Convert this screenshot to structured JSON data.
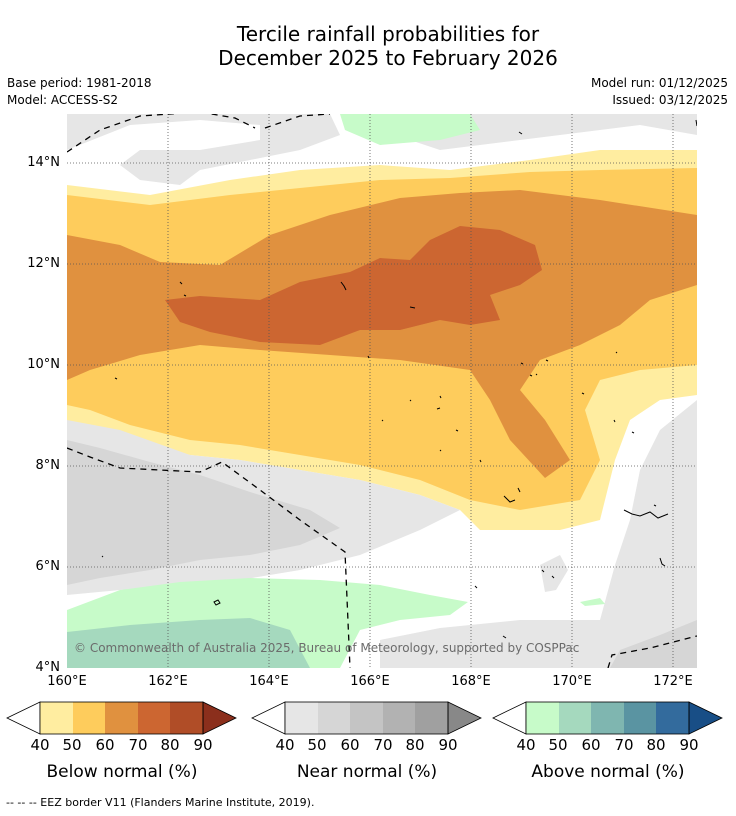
{
  "title": {
    "line1": "Tercile rainfall probabilities for",
    "line2": "December 2025 to February 2026"
  },
  "meta": {
    "base_period": "Base period: 1981-2018",
    "model": "Model: ACCESS-S2",
    "model_run": "Model run: 01/12/2025",
    "issued": "Issued: 03/12/2025"
  },
  "map": {
    "lat_labels": [
      "14°N",
      "12°N",
      "10°N",
      "8°N",
      "6°N",
      "4°N"
    ],
    "lon_labels": [
      "160°E",
      "162°E",
      "164°E",
      "166°E",
      "168°E",
      "170°E",
      "172°E"
    ],
    "copyright": "© Commonwealth of Australia 2025, Bureau of Meteorology, supported by COSPPac"
  },
  "legends": [
    {
      "title": "Below normal (%)",
      "ticks": [
        "40",
        "50",
        "60",
        "70",
        "80",
        "90"
      ],
      "colors": [
        "#ffeda0",
        "#fecc5c",
        "#e0913f",
        "#cc6631",
        "#b04d27",
        "#8b2f1c"
      ]
    },
    {
      "title": "Near normal (%)",
      "ticks": [
        "40",
        "50",
        "60",
        "70",
        "80",
        "90"
      ],
      "colors": [
        "#e6e6e6",
        "#d6d6d6",
        "#c4c4c4",
        "#b2b2b2",
        "#a0a0a0",
        "#888888"
      ]
    },
    {
      "title": "Above normal (%)",
      "ticks": [
        "40",
        "50",
        "60",
        "70",
        "80",
        "90"
      ],
      "colors": [
        "#c7fbc9",
        "#a5d9be",
        "#7fb6b0",
        "#5a94a2",
        "#336b9d",
        "#184e86"
      ]
    }
  ],
  "footer": "--  --  -- EEZ border V11 (Flanders Marine Institute, 2019)."
}
